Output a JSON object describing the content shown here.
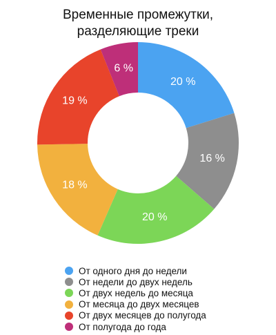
{
  "chart_data": {
    "type": "pie",
    "variant": "donut",
    "title": [
      "Временные промежутки,",
      "разделяющие треки"
    ],
    "categories": [
      "От одного дня до недели",
      "От недели до двух недель",
      "От двух недель до месяца",
      "От месяца до двух месяцев",
      "От двух месяцев до полугода",
      "От полугода до года"
    ],
    "values": [
      20,
      16,
      20,
      18,
      19,
      6
    ],
    "labels": [
      "20 %",
      "16 %",
      "20 %",
      "18 %",
      "19 %",
      "6 %"
    ],
    "colors": [
      "#4BA3F1",
      "#8E8E8E",
      "#7CD657",
      "#F2B13E",
      "#E8442B",
      "#BE2F79"
    ],
    "legend_position": "bottom"
  }
}
